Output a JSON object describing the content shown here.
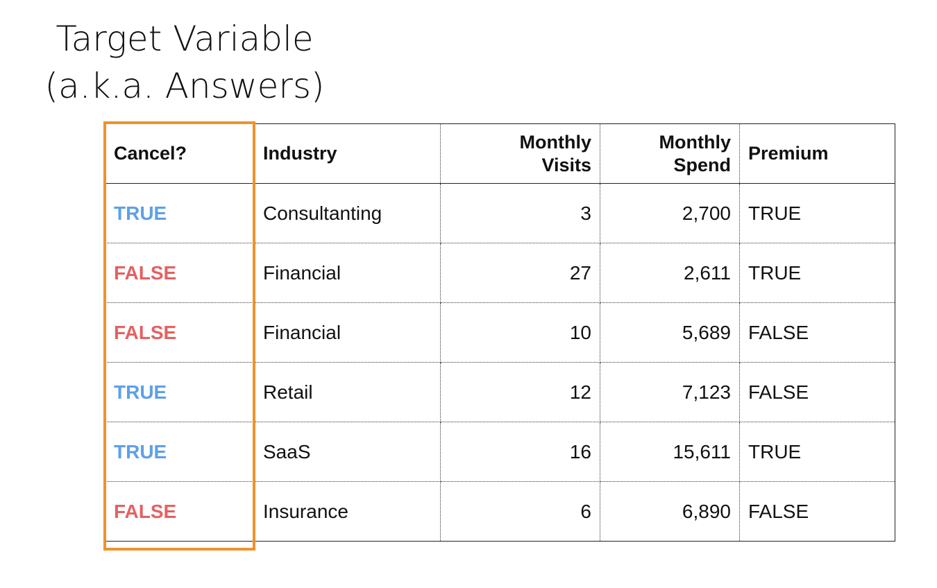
{
  "title": {
    "line1": "Target Variable",
    "line2": "(a.k.a. Answers)"
  },
  "table": {
    "headers": {
      "cancel": "Cancel?",
      "industry": "Industry",
      "visits_line1": "Monthly",
      "visits_line2": "Visits",
      "spend_line1": "Monthly",
      "spend_line2": "Spend",
      "premium": "Premium"
    },
    "rows": [
      {
        "cancel": "TRUE",
        "industry": "Consultanting",
        "visits": "3",
        "spend": "2,700",
        "premium": "TRUE"
      },
      {
        "cancel": "FALSE",
        "industry": "Financial",
        "visits": "27",
        "spend": "2,611",
        "premium": "TRUE"
      },
      {
        "cancel": "FALSE",
        "industry": "Financial",
        "visits": "10",
        "spend": "5,689",
        "premium": "FALSE"
      },
      {
        "cancel": "TRUE",
        "industry": "Retail",
        "visits": "12",
        "spend": "7,123",
        "premium": "FALSE"
      },
      {
        "cancel": "TRUE",
        "industry": "SaaS",
        "visits": "16",
        "spend": "15,611",
        "premium": "TRUE"
      },
      {
        "cancel": "FALSE",
        "industry": "Insurance",
        "visits": "6",
        "spend": "6,890",
        "premium": "FALSE"
      }
    ]
  },
  "colors": {
    "true": "#5ea0e6",
    "false": "#e36262",
    "highlight": "#ee922e"
  }
}
